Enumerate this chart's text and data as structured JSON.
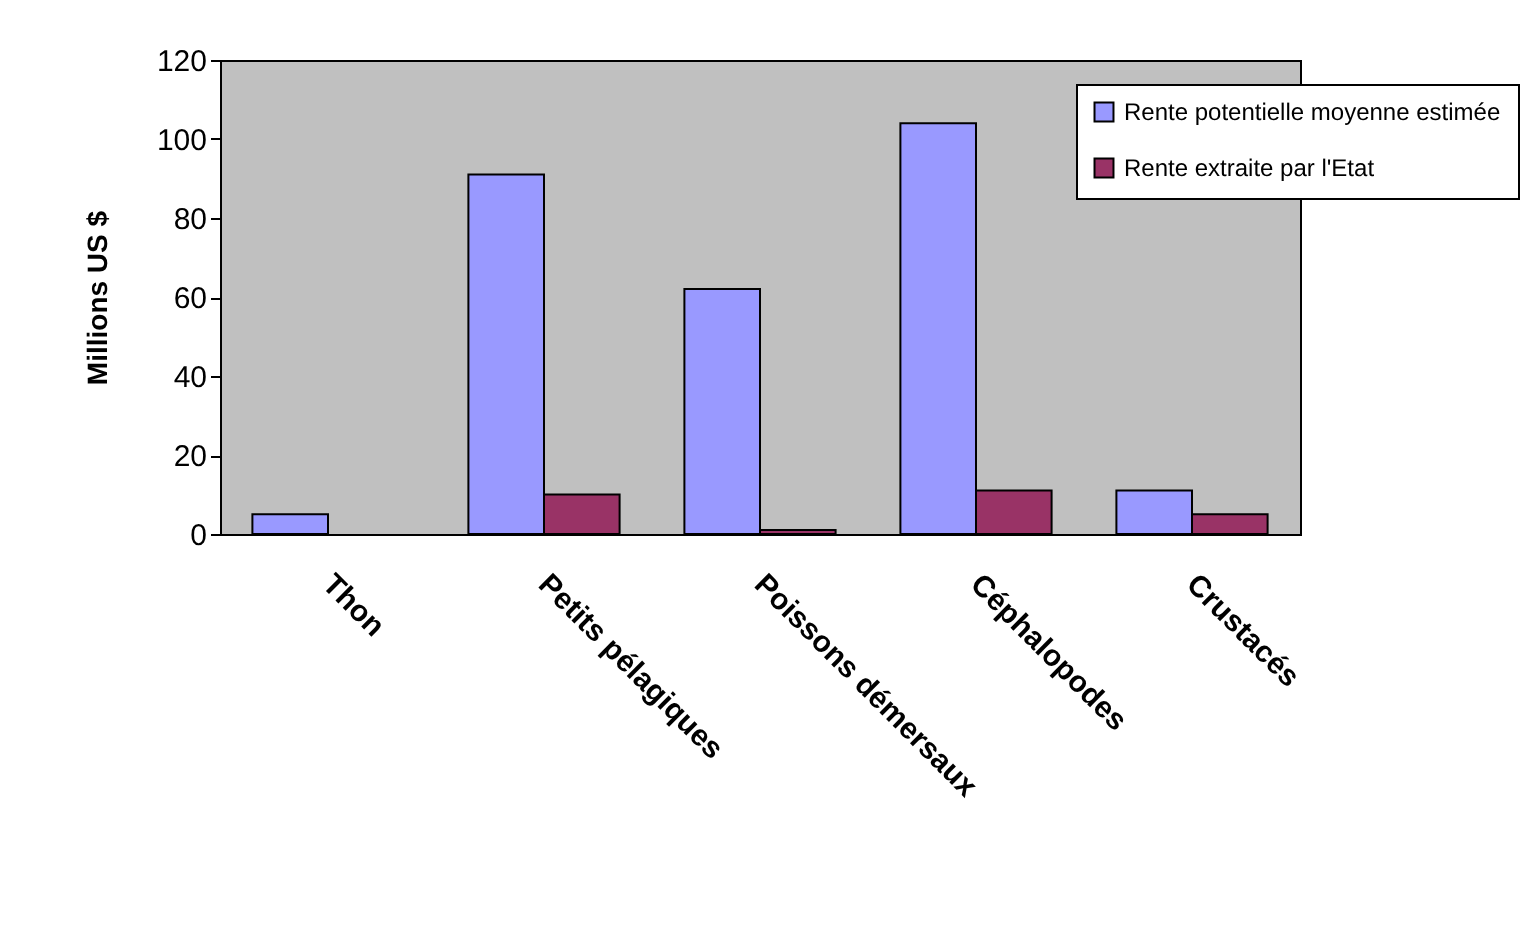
{
  "chart_data": {
    "type": "bar",
    "ylabel": "Millions US $",
    "categories": [
      "Thon",
      "Petits pélagiques",
      "Poissons démersaux",
      "Céphalopodes",
      "Crustacés"
    ],
    "series": [
      {
        "name": "Rente potentielle moyenne estimée",
        "color": "#9999ff",
        "values": [
          5,
          91,
          62,
          104,
          11
        ]
      },
      {
        "name": "Rente extraite par l'Etat",
        "color": "#993366",
        "values": [
          null,
          10,
          1,
          11,
          5
        ]
      }
    ],
    "ylim": [
      0,
      120
    ],
    "yticks": [
      0,
      20,
      40,
      60,
      80,
      100,
      120
    ],
    "legend": "top right"
  }
}
